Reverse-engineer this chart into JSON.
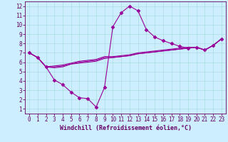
{
  "title": "",
  "xlabel": "Windchill (Refroidissement éolien,°C)",
  "ylabel": "",
  "xlim": [
    -0.5,
    23.5
  ],
  "ylim": [
    0.5,
    12.5
  ],
  "xticks": [
    0,
    1,
    2,
    3,
    4,
    5,
    6,
    7,
    8,
    9,
    10,
    11,
    12,
    13,
    14,
    15,
    16,
    17,
    18,
    19,
    20,
    21,
    22,
    23
  ],
  "yticks": [
    1,
    2,
    3,
    4,
    5,
    6,
    7,
    8,
    9,
    10,
    11,
    12
  ],
  "background_color": "#cceeff",
  "line_color": "#990099",
  "grid_color": "#aadddd",
  "lines": [
    [
      7.0,
      6.5,
      5.5,
      4.1,
      3.6,
      2.8,
      2.2,
      2.1,
      1.2,
      3.3,
      9.8,
      11.3,
      12.0,
      11.5,
      9.5,
      8.7,
      8.3,
      8.0,
      7.7,
      7.5,
      7.6,
      7.3,
      7.8,
      8.5
    ],
    [
      7.0,
      6.5,
      5.5,
      5.4,
      5.5,
      5.8,
      5.9,
      6.0,
      6.1,
      6.4,
      6.5,
      6.6,
      6.7,
      6.9,
      7.0,
      7.1,
      7.2,
      7.3,
      7.4,
      7.5,
      7.6,
      7.3,
      7.8,
      8.5
    ],
    [
      7.0,
      6.5,
      5.5,
      5.5,
      5.6,
      5.8,
      6.0,
      6.1,
      6.2,
      6.5,
      6.5,
      6.6,
      6.7,
      6.9,
      7.0,
      7.1,
      7.2,
      7.3,
      7.4,
      7.5,
      7.6,
      7.3,
      7.8,
      8.5
    ],
    [
      7.0,
      6.5,
      5.5,
      5.6,
      5.7,
      5.9,
      6.1,
      6.2,
      6.3,
      6.6,
      6.6,
      6.7,
      6.8,
      7.0,
      7.1,
      7.2,
      7.3,
      7.4,
      7.5,
      7.6,
      7.6,
      7.3,
      7.8,
      8.5
    ]
  ],
  "marker_line_index": 0,
  "tick_fontsize": 5.5,
  "xlabel_fontsize": 6.0,
  "tick_color": "#660066",
  "spine_color": "#660066"
}
